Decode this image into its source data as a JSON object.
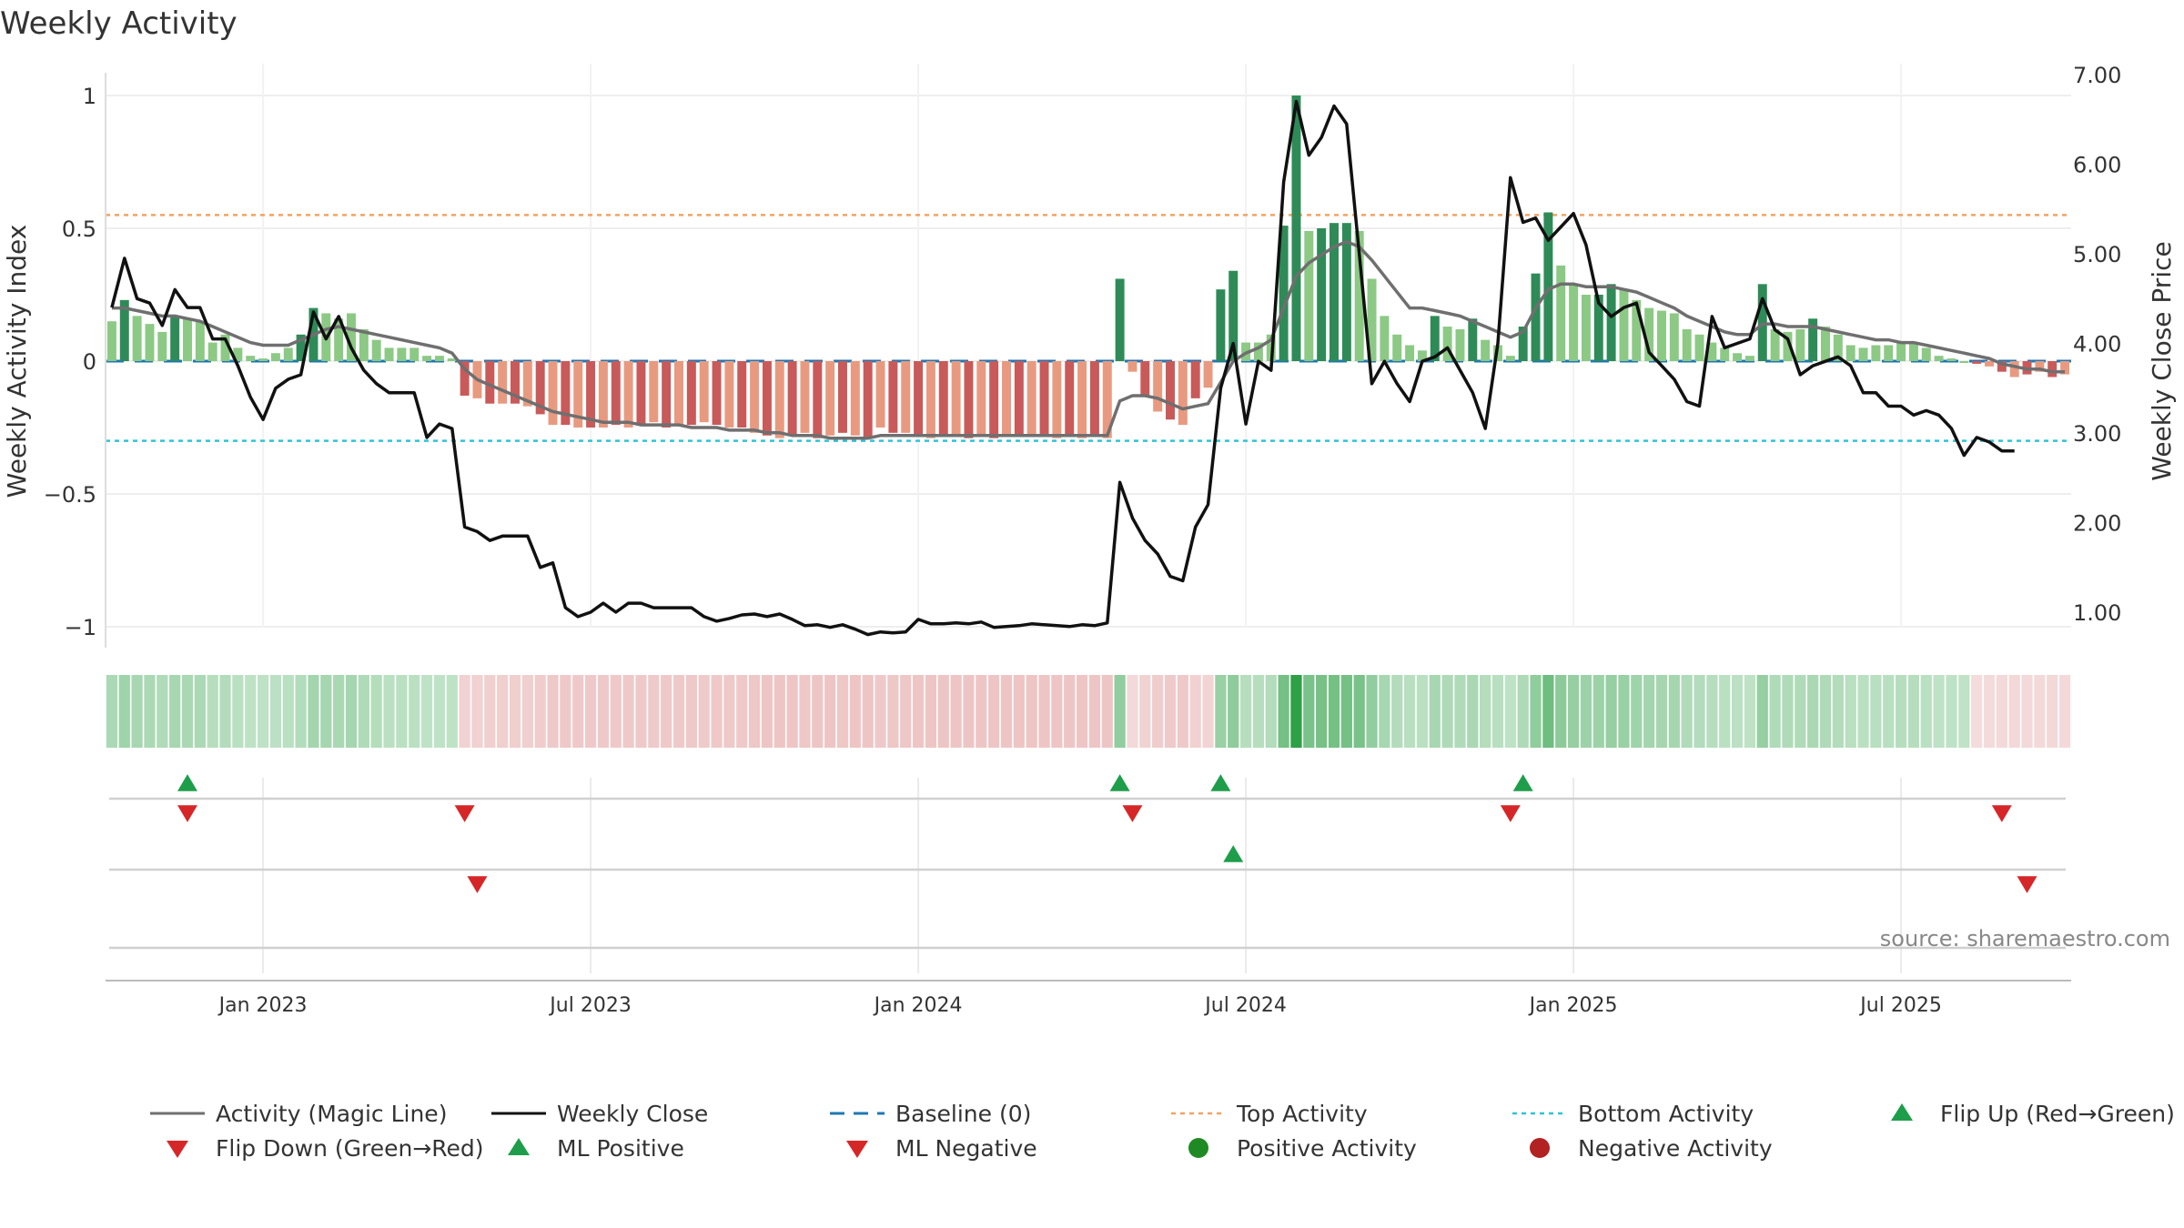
{
  "title": "Weekly Activity",
  "source": "source: sharemaestro.com",
  "colors": {
    "pos_dark": "#2e8b57",
    "pos_light": "#8cc985",
    "neg_dark": "#c95a5a",
    "neg_light": "#e89a80",
    "magic": "#6f6f6f",
    "close": "#111111",
    "baseline": "#1f77b4",
    "top": "#f4a261",
    "bottom": "#2ec4d6",
    "up": "#1e9e4a",
    "down": "#d62728"
  },
  "chart_data": {
    "type": "bar+line",
    "title": "Weekly Activity",
    "ylabel_left": "Weekly Activity Index",
    "ylabel_right": "Weekly Close Price",
    "yticks_left": [
      "1",
      "0.5",
      "0",
      "−0.5",
      "−1"
    ],
    "yticks_left_values": [
      1,
      0.5,
      0,
      -0.5,
      -1
    ],
    "ylim_left": [
      -1.08,
      1.12
    ],
    "yticks_right": [
      "7.00",
      "6.00",
      "5.00",
      "4.00",
      "3.00",
      "2.00",
      "1.00"
    ],
    "yticks_right_values": [
      7,
      6,
      5,
      4,
      3,
      2,
      1
    ],
    "ylim_right": [
      0.85,
      7.12
    ],
    "xticks": [
      "Jan 2023",
      "Jul 2023",
      "Jan 2024",
      "Jul 2024",
      "Jan 2025",
      "Jul 2025"
    ],
    "xticks_week": [
      12,
      38,
      64,
      90,
      116,
      142
    ],
    "weeks": 156,
    "top_activity": 0.55,
    "bottom_activity": -0.3,
    "baseline": 0,
    "activity": [
      0.15,
      0.23,
      0.17,
      0.14,
      0.11,
      0.17,
      0.16,
      0.15,
      0.07,
      0.1,
      0.05,
      0.02,
      0.01,
      0.03,
      0.05,
      0.1,
      0.2,
      0.18,
      0.16,
      0.18,
      0.12,
      0.08,
      0.05,
      0.05,
      0.05,
      0.02,
      0.02,
      0.01,
      -0.13,
      -0.14,
      -0.16,
      -0.16,
      -0.16,
      -0.17,
      -0.2,
      -0.24,
      -0.24,
      -0.25,
      -0.25,
      -0.25,
      -0.24,
      -0.25,
      -0.24,
      -0.23,
      -0.25,
      -0.24,
      -0.24,
      -0.23,
      -0.24,
      -0.25,
      -0.25,
      -0.27,
      -0.28,
      -0.29,
      -0.28,
      -0.27,
      -0.29,
      -0.28,
      -0.27,
      -0.28,
      -0.29,
      -0.25,
      -0.27,
      -0.27,
      -0.28,
      -0.29,
      -0.28,
      -0.28,
      -0.29,
      -0.28,
      -0.29,
      -0.28,
      -0.28,
      -0.28,
      -0.28,
      -0.29,
      -0.28,
      -0.29,
      -0.28,
      -0.29,
      0.31,
      -0.04,
      -0.13,
      -0.19,
      -0.22,
      -0.24,
      -0.14,
      -0.1,
      0.27,
      0.34,
      0.07,
      0.07,
      0.1,
      0.51,
      1.0,
      0.49,
      0.5,
      0.52,
      0.52,
      0.49,
      0.31,
      0.17,
      0.1,
      0.06,
      0.04,
      0.17,
      0.13,
      0.12,
      0.16,
      0.08,
      0.06,
      0.02,
      0.13,
      0.33,
      0.56,
      0.36,
      0.29,
      0.25,
      0.25,
      0.29,
      0.27,
      0.23,
      0.2,
      0.19,
      0.18,
      0.12,
      0.1,
      0.07,
      0.05,
      0.03,
      0.02,
      0.29,
      0.12,
      0.11,
      0.12,
      0.16,
      0.13,
      0.1,
      0.06,
      0.05,
      0.06,
      0.06,
      0.07,
      0.07,
      0.05,
      0.02,
      0.01,
      0.0,
      -0.01,
      -0.02,
      -0.04,
      -0.06,
      -0.05,
      -0.04,
      -0.06,
      -0.05
    ],
    "magic_line": [
      0.2,
      0.2,
      0.19,
      0.18,
      0.17,
      0.17,
      0.16,
      0.15,
      0.13,
      0.11,
      0.09,
      0.07,
      0.06,
      0.06,
      0.06,
      0.08,
      0.1,
      0.12,
      0.13,
      0.12,
      0.11,
      0.1,
      0.09,
      0.08,
      0.07,
      0.06,
      0.05,
      0.03,
      -0.03,
      -0.07,
      -0.09,
      -0.11,
      -0.13,
      -0.15,
      -0.17,
      -0.19,
      -0.2,
      -0.21,
      -0.22,
      -0.23,
      -0.23,
      -0.23,
      -0.24,
      -0.24,
      -0.24,
      -0.24,
      -0.25,
      -0.25,
      -0.25,
      -0.26,
      -0.26,
      -0.26,
      -0.27,
      -0.27,
      -0.28,
      -0.28,
      -0.28,
      -0.29,
      -0.29,
      -0.29,
      -0.29,
      -0.28,
      -0.28,
      -0.28,
      -0.28,
      -0.28,
      -0.28,
      -0.28,
      -0.28,
      -0.28,
      -0.28,
      -0.28,
      -0.28,
      -0.28,
      -0.28,
      -0.28,
      -0.28,
      -0.28,
      -0.28,
      -0.28,
      -0.15,
      -0.13,
      -0.13,
      -0.14,
      -0.16,
      -0.18,
      -0.17,
      -0.16,
      -0.08,
      0.0,
      0.03,
      0.05,
      0.08,
      0.2,
      0.32,
      0.37,
      0.4,
      0.43,
      0.45,
      0.43,
      0.38,
      0.32,
      0.26,
      0.2,
      0.2,
      0.19,
      0.18,
      0.17,
      0.15,
      0.13,
      0.11,
      0.09,
      0.11,
      0.2,
      0.27,
      0.29,
      0.29,
      0.28,
      0.28,
      0.28,
      0.27,
      0.26,
      0.24,
      0.22,
      0.2,
      0.17,
      0.15,
      0.13,
      0.11,
      0.1,
      0.1,
      0.14,
      0.14,
      0.13,
      0.13,
      0.13,
      0.12,
      0.11,
      0.1,
      0.09,
      0.08,
      0.08,
      0.07,
      0.07,
      0.06,
      0.05,
      0.04,
      0.03,
      0.02,
      0.01,
      -0.01,
      -0.02,
      -0.03,
      -0.03,
      -0.04,
      -0.04
    ],
    "weekly_close": [
      4.4,
      4.95,
      4.5,
      4.45,
      4.2,
      4.6,
      4.4,
      4.4,
      4.05,
      4.05,
      3.75,
      3.4,
      3.15,
      3.5,
      3.6,
      3.65,
      4.35,
      4.05,
      4.3,
      3.95,
      3.7,
      3.55,
      3.45,
      3.45,
      3.45,
      2.95,
      3.1,
      3.05,
      1.95,
      1.9,
      1.8,
      1.85,
      1.85,
      1.85,
      1.5,
      1.55,
      1.05,
      0.95,
      1.0,
      1.1,
      1.0,
      1.1,
      1.1,
      1.05,
      1.05,
      1.05,
      1.05,
      0.95,
      0.9,
      0.93,
      0.97,
      0.98,
      0.95,
      0.98,
      0.92,
      0.85,
      0.86,
      0.83,
      0.86,
      0.81,
      0.75,
      0.78,
      0.77,
      0.78,
      0.92,
      0.87,
      0.87,
      0.88,
      0.87,
      0.89,
      0.83,
      0.84,
      0.85,
      0.87,
      0.86,
      0.85,
      0.84,
      0.86,
      0.85,
      0.88,
      2.45,
      2.05,
      1.8,
      1.65,
      1.4,
      1.35,
      1.95,
      2.2,
      3.5,
      4.0,
      3.1,
      3.8,
      3.7,
      5.8,
      6.7,
      6.1,
      6.3,
      6.65,
      6.45,
      5.0,
      3.55,
      3.8,
      3.55,
      3.35,
      3.8,
      3.85,
      3.95,
      3.7,
      3.45,
      3.05,
      4.0,
      5.85,
      5.35,
      5.4,
      5.15,
      5.3,
      5.45,
      5.1,
      4.45,
      4.3,
      4.4,
      4.45,
      3.9,
      3.75,
      3.6,
      3.35,
      3.3,
      4.3,
      3.95,
      4.0,
      4.05,
      4.5,
      4.15,
      4.05,
      3.65,
      3.75,
      3.8,
      3.85,
      3.75,
      3.45,
      3.45,
      3.3,
      3.3,
      3.2,
      3.25,
      3.2,
      3.05,
      2.75,
      2.95,
      2.9,
      2.8,
      2.8
    ],
    "flip_up_weeks": [
      6,
      80,
      88,
      112
    ],
    "flip_down_weeks": [
      6,
      28,
      81,
      111,
      150
    ],
    "ml_positive_weeks": [
      89
    ],
    "ml_negative_weeks": [
      29,
      152
    ],
    "legend": [
      "Activity (Magic Line)",
      "Weekly Close",
      "Baseline (0)",
      "Top Activity",
      "Bottom Activity",
      "Flip Up (Red→Green)",
      "Flip Down (Green→Red)",
      "ML Positive",
      "ML Negative",
      "Positive Activity",
      "Negative Activity"
    ]
  }
}
